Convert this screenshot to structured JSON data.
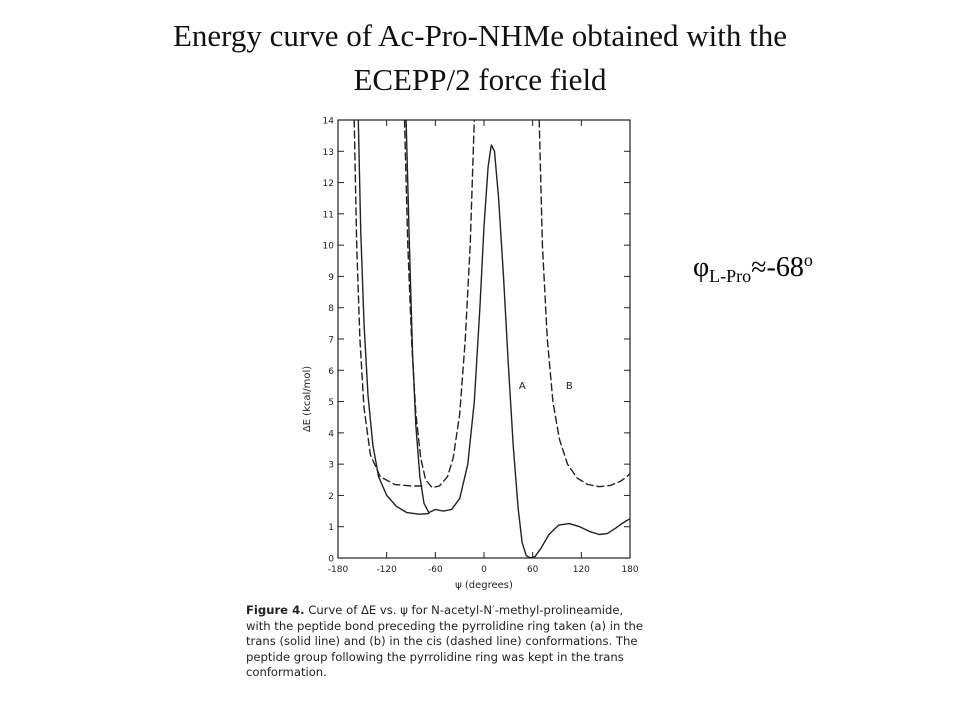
{
  "title": {
    "line1": "Energy curve of Ac-Pro-NHMe obtained with the",
    "line2": "ECEPP/2 force field"
  },
  "annotation": {
    "symbol": "φ",
    "subscript": "L-Pro",
    "relation": "≈-68",
    "superscript": "o"
  },
  "caption": {
    "label": "Figure 4.",
    "lines": [
      "Curve of ΔE vs. ψ for N-acetyl-N′-methyl-prolineamide,",
      "with the peptide bond preceding the pyrrolidine ring taken (a) in the",
      "trans (solid line) and (b) in the cis (dashed line) conformations. The",
      "peptide group following the pyrrolidine ring was kept in the trans",
      "conformation."
    ]
  },
  "chart_data": {
    "type": "line",
    "xlabel": "ψ (degrees)",
    "ylabel": "ΔE (kcal/mol)",
    "xlim": [
      -180,
      180
    ],
    "ylim": [
      0,
      14
    ],
    "xticks": [
      -180,
      -120,
      -60,
      0,
      60,
      120,
      180
    ],
    "xtick_labels": [
      "-180",
      "-120",
      "-60",
      "0",
      "60",
      "120",
      "180"
    ],
    "yticks": [
      0,
      1,
      2,
      3,
      4,
      5,
      6,
      7,
      8,
      9,
      10,
      11,
      12,
      13,
      14
    ],
    "ytick_labels": [
      "0",
      "1",
      "2",
      "3",
      "4",
      "5",
      "6",
      "7",
      "8",
      "9",
      "10",
      "11",
      "12",
      "13",
      "14"
    ],
    "grid": false,
    "series": [
      {
        "name": "A",
        "style": "solid",
        "segments": [
          [
            [
              -155,
              14
            ],
            [
              -152,
              10.5
            ],
            [
              -148,
              7.5
            ],
            [
              -143,
              5.2
            ],
            [
              -137,
              3.6
            ],
            [
              -130,
              2.6
            ],
            [
              -120,
              2.0
            ],
            [
              -108,
              1.65
            ],
            [
              -95,
              1.45
            ],
            [
              -80,
              1.4
            ],
            [
              -68,
              1.42
            ]
          ],
          [
            [
              -96,
              14
            ],
            [
              -92,
              10
            ],
            [
              -88,
              6.5
            ],
            [
              -84,
              4.2
            ],
            [
              -79,
              2.6
            ],
            [
              -74,
              1.75
            ],
            [
              -68,
              1.45
            ],
            [
              -60,
              1.55
            ],
            [
              -50,
              1.5
            ],
            [
              -40,
              1.55
            ],
            [
              -30,
              1.9
            ],
            [
              -20,
              3.0
            ],
            [
              -12,
              5.0
            ],
            [
              -5,
              8.0
            ],
            [
              0,
              10.6
            ],
            [
              5,
              12.5
            ],
            [
              9,
              13.2
            ],
            [
              13,
              13.0
            ],
            [
              18,
              11.5
            ],
            [
              24,
              9.0
            ],
            [
              30,
              6.2
            ],
            [
              36,
              3.6
            ],
            [
              42,
              1.6
            ],
            [
              47,
              0.5
            ],
            [
              52,
              0.08
            ],
            [
              57,
              0.0
            ],
            [
              63,
              0.05
            ],
            [
              70,
              0.3
            ],
            [
              80,
              0.75
            ],
            [
              92,
              1.05
            ],
            [
              105,
              1.1
            ],
            [
              118,
              1.0
            ],
            [
              130,
              0.85
            ],
            [
              142,
              0.75
            ],
            [
              152,
              0.78
            ],
            [
              162,
              0.95
            ],
            [
              170,
              1.1
            ],
            [
              176,
              1.2
            ],
            [
              180,
              1.25
            ]
          ]
        ]
      },
      {
        "name": "B",
        "style": "dashed",
        "segments": [
          [
            [
              -160,
              14
            ],
            [
              -157,
              10
            ],
            [
              -153,
              7.0
            ],
            [
              -148,
              4.8
            ],
            [
              -140,
              3.3
            ],
            [
              -128,
              2.6
            ],
            [
              -110,
              2.35
            ],
            [
              -90,
              2.3
            ],
            [
              -72,
              2.3
            ]
          ],
          [
            [
              -98,
              14
            ],
            [
              -94,
              10
            ],
            [
              -89,
              6.8
            ],
            [
              -84,
              4.6
            ],
            [
              -78,
              3.2
            ],
            [
              -72,
              2.5
            ],
            [
              -64,
              2.25
            ],
            [
              -55,
              2.3
            ],
            [
              -45,
              2.6
            ],
            [
              -38,
              3.2
            ],
            [
              -30,
              4.6
            ],
            [
              -23,
              7.0
            ],
            [
              -17,
              10
            ],
            [
              -12,
              14
            ]
          ],
          [
            [
              68,
              14
            ],
            [
              72,
              10
            ],
            [
              78,
              7.0
            ],
            [
              85,
              5.0
            ],
            [
              93,
              3.8
            ],
            [
              103,
              3.0
            ],
            [
              115,
              2.55
            ],
            [
              128,
              2.35
            ],
            [
              142,
              2.28
            ],
            [
              156,
              2.32
            ],
            [
              168,
              2.45
            ],
            [
              176,
              2.6
            ],
            [
              180,
              2.7
            ]
          ]
        ]
      }
    ],
    "curve_labels": [
      {
        "text": "A",
        "x": 43,
        "y": 5.4
      },
      {
        "text": "B",
        "x": 101,
        "y": 5.4
      }
    ]
  }
}
